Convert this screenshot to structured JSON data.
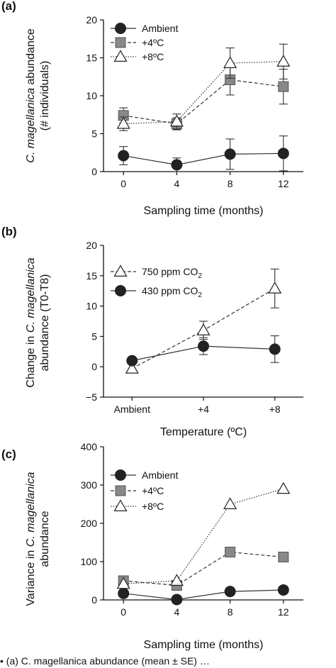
{
  "caption": "• (a) C. magellanica abundance (mean ± SE) …",
  "chart_data": [
    {
      "panel": "(a)",
      "type": "line",
      "ylabel_italic": "C. magellanica",
      "ylabel_rest": " abundance",
      "ylabel_line2": "(# individuals)",
      "xlabel": "Sampling time (months)",
      "x": [
        0,
        4,
        8,
        12
      ],
      "xticks": [
        "0",
        "4",
        "8",
        "12"
      ],
      "xlim": [
        -1.5,
        13.5
      ],
      "ylim": [
        0,
        20
      ],
      "yticks": [
        0,
        5,
        10,
        15,
        20
      ],
      "legend_position": "top-left",
      "series": [
        {
          "name": "Ambient",
          "marker": "circle",
          "line": "solid",
          "fill": "#222222",
          "values": [
            2.1,
            0.9,
            2.3,
            2.4
          ],
          "error": [
            1.2,
            0.9,
            2.0,
            2.3
          ]
        },
        {
          "name": "+4ºC",
          "marker": "square",
          "line": "dashed",
          "fill": "#888888",
          "values": [
            7.4,
            6.3,
            12.1,
            11.2
          ],
          "error": [
            1.0,
            0.8,
            2.0,
            2.3
          ]
        },
        {
          "name": "+8ºC",
          "marker": "triangle",
          "line": "dotted",
          "fill": "#ffffff",
          "values": [
            6.3,
            6.6,
            14.3,
            14.5
          ],
          "error": [
            0.9,
            1.0,
            2.0,
            2.3
          ]
        }
      ]
    },
    {
      "panel": "(b)",
      "type": "line",
      "ylabel_line1": "Change in ",
      "ylabel_italic": "C. magellanica",
      "ylabel_line2": "abundance (T0-T8)",
      "xlabel": "Temperature (ºC)",
      "categories": [
        "Ambient",
        "+4",
        "+8"
      ],
      "xlim": [
        -0.4,
        2.4
      ],
      "ylim": [
        -5,
        20
      ],
      "yticks": [
        -5,
        0,
        5,
        10,
        15,
        20
      ],
      "ytick_labels": [
        "−5",
        "0",
        "5",
        "10",
        "15",
        "20"
      ],
      "legend_position": "top-left",
      "series": [
        {
          "name": "750 ppm CO2",
          "marker": "triangle",
          "line": "dashed",
          "fill": "#ffffff",
          "values": [
            -0.3,
            6.0,
            12.9
          ],
          "error": [
            0,
            1.5,
            3.2
          ]
        },
        {
          "name": "430 ppm CO2",
          "marker": "circle",
          "line": "solid",
          "fill": "#222222",
          "values": [
            1.0,
            3.4,
            2.9
          ],
          "error": [
            0,
            1.4,
            2.2
          ]
        }
      ]
    },
    {
      "panel": "(c)",
      "type": "line",
      "ylabel_line1": "Variance in ",
      "ylabel_italic": "C. magellanica",
      "ylabel_line2": "abundance",
      "xlabel": "Sampling time (months)",
      "x": [
        0,
        4,
        8,
        12
      ],
      "xticks": [
        "0",
        "4",
        "8",
        "12"
      ],
      "xlim": [
        -1.5,
        13.5
      ],
      "ylim": [
        0,
        400
      ],
      "yticks": [
        0,
        100,
        200,
        300,
        400
      ],
      "legend_position": "top-left",
      "series": [
        {
          "name": "Ambient",
          "marker": "circle",
          "line": "solid",
          "fill": "#222222",
          "values": [
            17,
            1,
            22,
            26
          ]
        },
        {
          "name": "+4ºC",
          "marker": "square",
          "line": "dashed",
          "fill": "#888888",
          "values": [
            50,
            38,
            125,
            112
          ]
        },
        {
          "name": "+8ºC",
          "marker": "triangle",
          "line": "dotted",
          "fill": "#ffffff",
          "values": [
            42,
            50,
            250,
            290
          ]
        }
      ]
    }
  ]
}
